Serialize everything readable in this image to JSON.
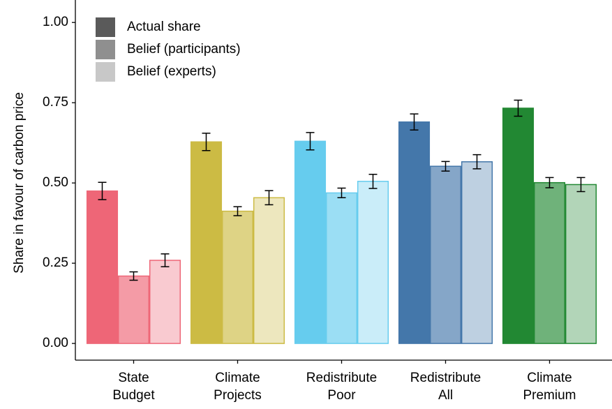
{
  "chart_data": {
    "type": "bar",
    "y_label": "Share in favour of carbon price",
    "categories": [
      [
        "State",
        "Budget"
      ],
      [
        "Climate",
        "Projects"
      ],
      [
        "Redistribute",
        "Poor"
      ],
      [
        "Redistribute",
        "All"
      ],
      [
        "Climate",
        "Premium"
      ]
    ],
    "category_colors": [
      "#ee6677",
      "#ccbb44",
      "#66ccee",
      "#4477aa",
      "#228833"
    ],
    "series": [
      {
        "name": "Actual share",
        "color": "#5a5a5a",
        "opacity": 1,
        "values": [
          0.475,
          0.628,
          0.63,
          0.69,
          0.733
        ],
        "errors": [
          0.027,
          0.027,
          0.027,
          0.025,
          0.025
        ]
      },
      {
        "name": "Belief (participants)",
        "color": "#8f8f8f",
        "opacity": 0.65,
        "values": [
          0.21,
          0.412,
          0.469,
          0.552,
          0.501
        ],
        "errors": [
          0.013,
          0.014,
          0.015,
          0.015,
          0.016
        ]
      },
      {
        "name": "Belief (experts)",
        "color": "#c8c8c8",
        "opacity": 0.35,
        "values": [
          0.259,
          0.454,
          0.505,
          0.566,
          0.495
        ],
        "errors": [
          0.02,
          0.022,
          0.022,
          0.022,
          0.022
        ]
      }
    ],
    "ylim": [
      -0.052,
      1.07
    ],
    "yticks": [
      {
        "value": 0,
        "label": "0.00"
      },
      {
        "value": 0.25,
        "label": "0.25"
      },
      {
        "value": 0.5,
        "label": "0.50"
      },
      {
        "value": 0.75,
        "label": "0.75"
      },
      {
        "value": 1,
        "label": "1.00"
      }
    ],
    "legend": "top-left"
  }
}
